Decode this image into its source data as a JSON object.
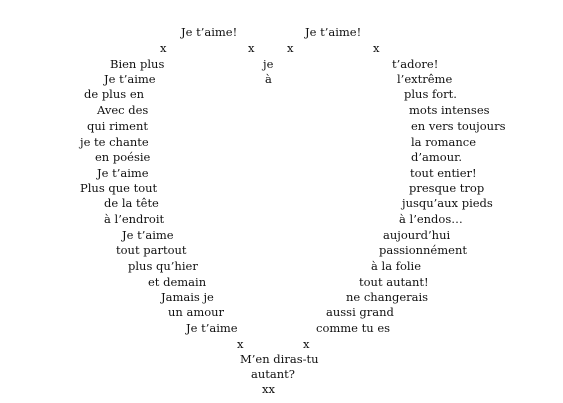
{
  "poem": {
    "top_left": "Je  t’aime!",
    "top_right": "Je t’aime!",
    "x_marks": "x",
    "xx_mark": "xx",
    "left_side": [
      "Bien plus",
      "Je t’aime",
      "de plus en",
      "Avec des",
      "qui riment",
      "je te chante",
      "en poésie",
      "Je t’aime",
      "Plus que tout",
      "de la tête",
      "à l’endroit",
      "Je t’aime",
      "tout partout",
      "plus qu’hier",
      "et demain",
      "Jamais je",
      "un amour",
      "Je t’aime"
    ],
    "right_side": [
      "t’adore!",
      "l’extrême",
      "plus fort.",
      "mots intenses",
      "en vers toujours",
      "la romance",
      "d’amour.",
      "tout entier!",
      "presque trop",
      "jusqu’aux pieds",
      "à l’endos…",
      "aujourd’hui",
      "passionnément",
      "à la folie",
      "tout autant!",
      "ne changerais",
      "aussi grand",
      "comme tu es"
    ],
    "center_top": [
      "je",
      "à"
    ],
    "center_bottom": [
      "M’en diras-tu",
      "autant?"
    ]
  }
}
